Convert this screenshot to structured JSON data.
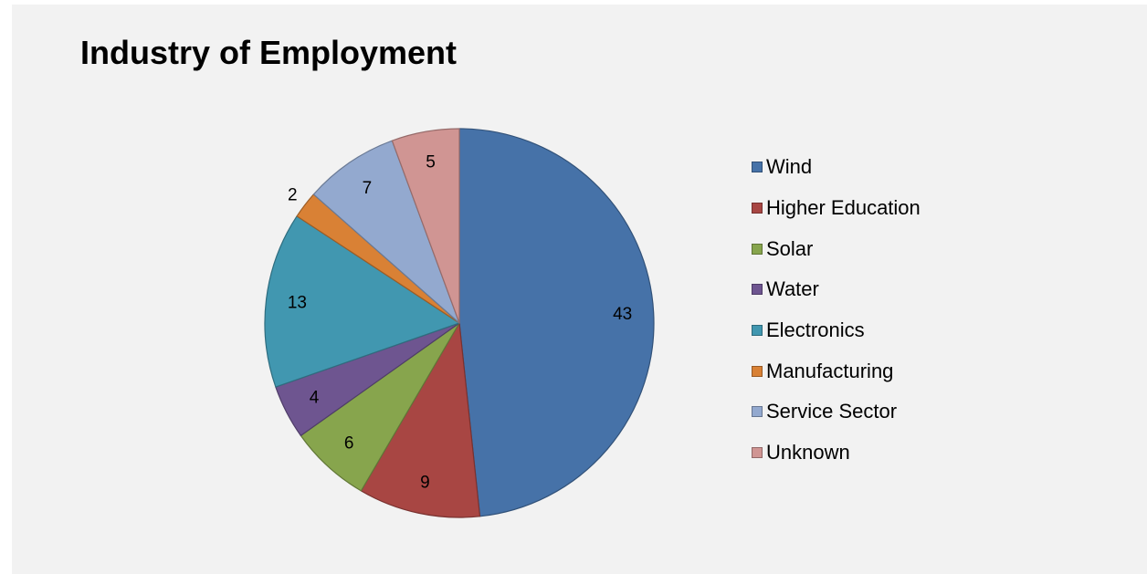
{
  "chart_data": {
    "type": "pie",
    "title": "Industry of Employment",
    "slices": [
      {
        "label": "Wind",
        "value": 43,
        "color": "#4672a8"
      },
      {
        "label": "Higher Education",
        "value": 9,
        "color": "#a84643"
      },
      {
        "label": "Solar",
        "value": 6,
        "color": "#87a54d"
      },
      {
        "label": "Water",
        "value": 4,
        "color": "#6e5590"
      },
      {
        "label": "Electronics",
        "value": 13,
        "color": "#4197b0"
      },
      {
        "label": "Manufacturing",
        "value": 2,
        "color": "#d98135"
      },
      {
        "label": "Service Sector",
        "value": 7,
        "color": "#93a9cf"
      },
      {
        "label": "Unknown",
        "value": 5,
        "color": "#d09593"
      }
    ],
    "legend_position": "right",
    "data_labels": true
  }
}
